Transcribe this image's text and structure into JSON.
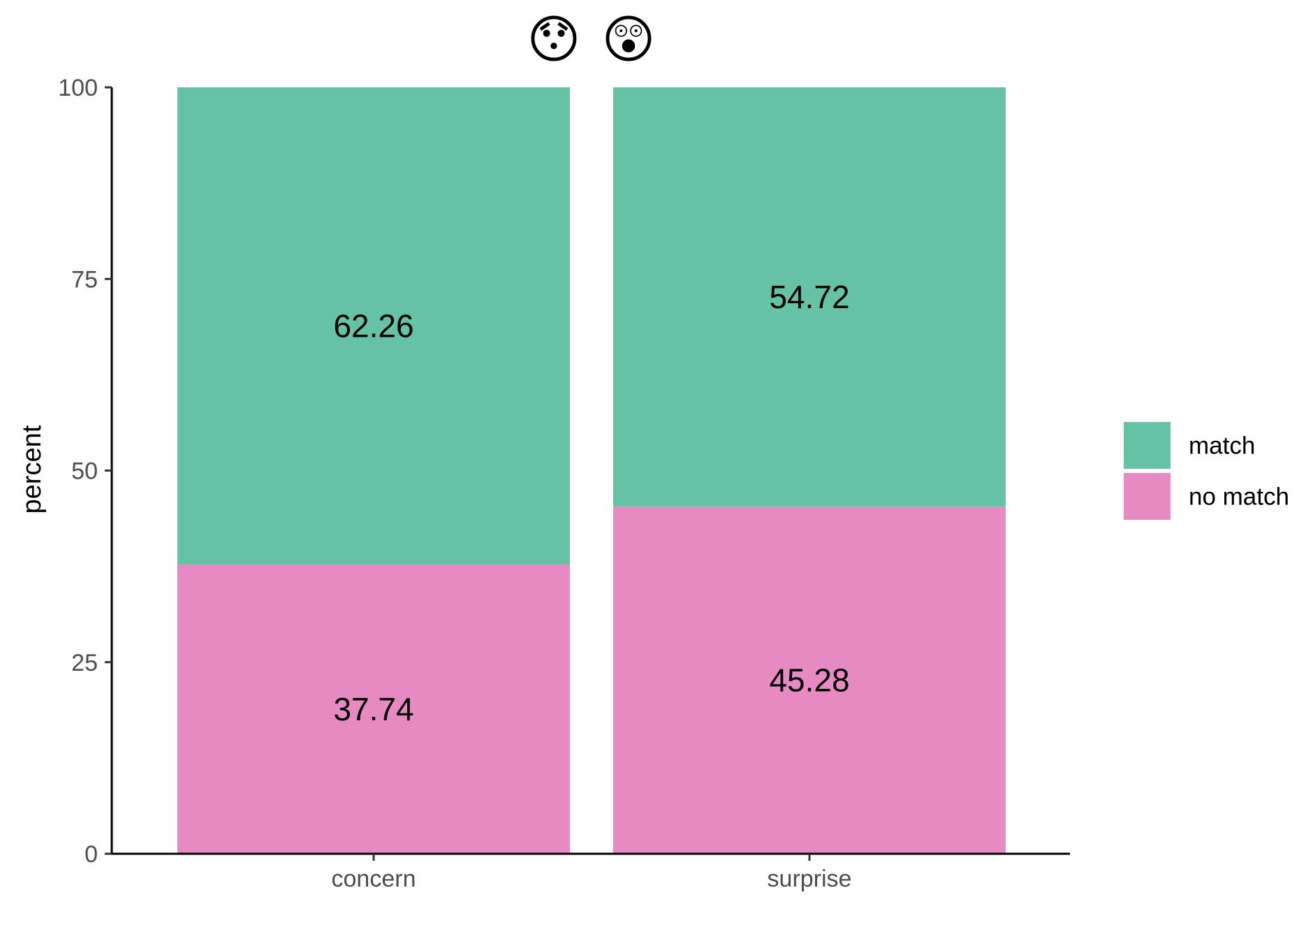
{
  "chart_data": {
    "type": "bar",
    "stacked": true,
    "title": "",
    "xlabel": "",
    "ylabel": "percent",
    "ylim": [
      0,
      100
    ],
    "yticks": [
      0,
      25,
      50,
      75,
      100
    ],
    "categories": [
      "concern",
      "surprise"
    ],
    "category_emojis": [
      "😯",
      "😲"
    ],
    "series": [
      {
        "name": "no match",
        "color": "#E78AC3",
        "values": [
          37.74,
          45.28
        ]
      },
      {
        "name": "match",
        "color": "#66C2A5",
        "values": [
          62.26,
          54.72
        ]
      }
    ],
    "data_labels": true,
    "grid": false,
    "legend": {
      "position": "right",
      "entries": [
        "match",
        "no match"
      ]
    }
  }
}
